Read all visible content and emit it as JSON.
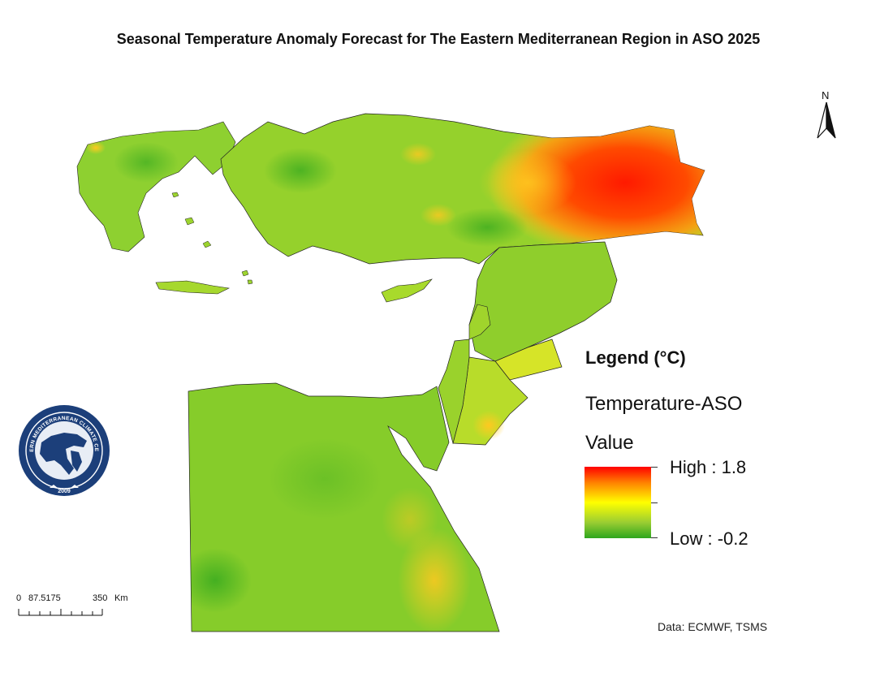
{
  "title": "Seasonal Temperature Anomaly Forecast for The Eastern Mediterranean Region in ASO 2025",
  "north_arrow": {
    "label": "N"
  },
  "legend": {
    "heading": "Legend (°C)",
    "layer": "Temperature-ASO",
    "field": "Value",
    "high_label": "High : 1.8",
    "low_label": "Low : -0.2",
    "high_value": 1.8,
    "low_value": -0.2,
    "colors": [
      "#ff0000",
      "#ff8000",
      "#ffff00",
      "#9acd32",
      "#2ea61e"
    ]
  },
  "scale_bar": {
    "ticks": [
      "0",
      "87.5175",
      "350"
    ],
    "unit": "Km"
  },
  "source": "Data: ECMWF, TSMS",
  "logo": {
    "top_text": "EASTERN MEDITERRANEAN CLIMATE CENTRE",
    "year": "2009"
  }
}
